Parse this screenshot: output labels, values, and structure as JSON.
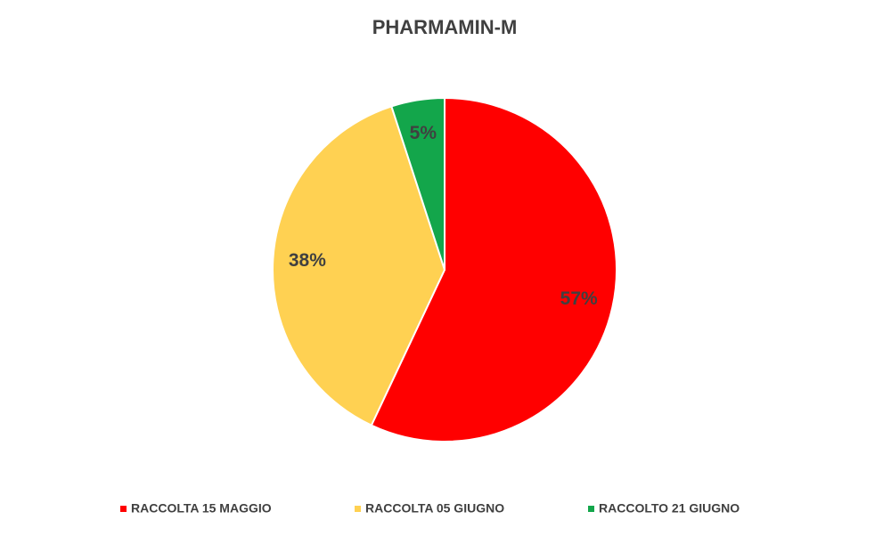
{
  "chart_data": {
    "type": "pie",
    "title": "PHARMAMIN-M",
    "categories": [
      "RACCOLTA 15 MAGGIO",
      "RACCOLTA 05 GIUGNO",
      "RACCOLTO 21 GIUGNO"
    ],
    "values": [
      57,
      38,
      5
    ],
    "value_labels": [
      "57%",
      "38%",
      "5%"
    ],
    "colors": [
      "#ff0000",
      "#ffd152",
      "#13a64b"
    ],
    "legend": "bottom"
  }
}
